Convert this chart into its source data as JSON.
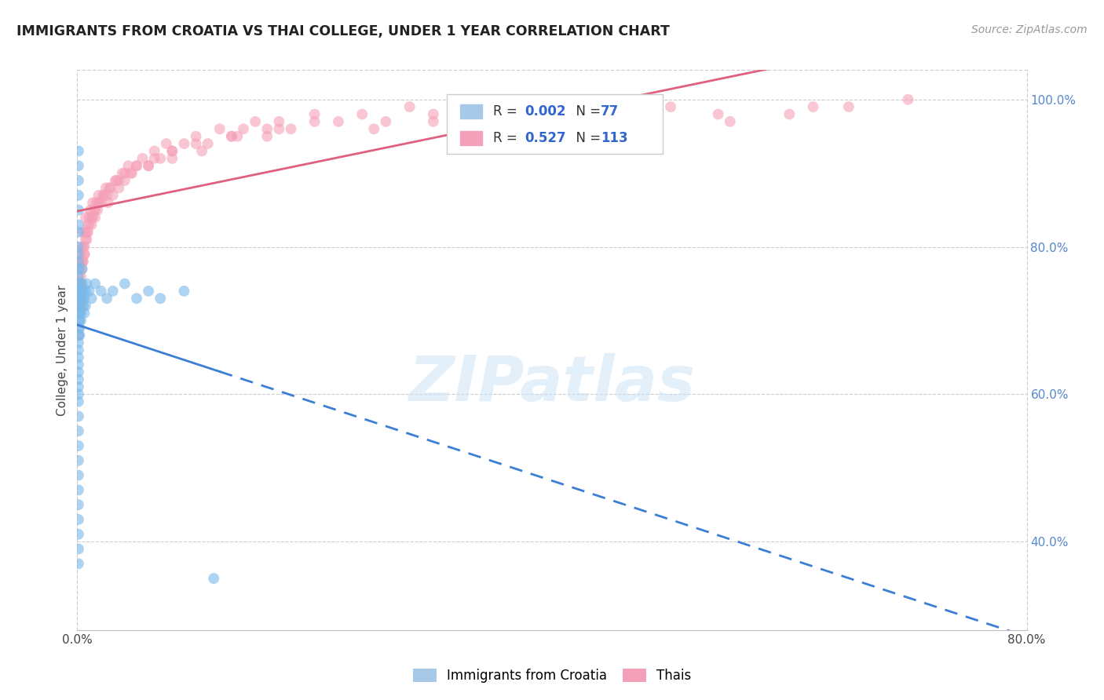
{
  "title": "IMMIGRANTS FROM CROATIA VS THAI COLLEGE, UNDER 1 YEAR CORRELATION CHART",
  "source": "Source: ZipAtlas.com",
  "ylabel": "College, Under 1 year",
  "xmin": 0.0,
  "xmax": 0.8,
  "ymin": 0.28,
  "ymax": 1.04,
  "right_yticks": [
    0.4,
    0.6,
    0.8,
    1.0
  ],
  "right_yticklabels": [
    "40.0%",
    "60.0%",
    "80.0%",
    "100.0%"
  ],
  "croatia_color": "#7ab8e8",
  "thai_color": "#f5a0b8",
  "croatia_line_color": "#3a7fd5",
  "thai_line_color": "#e06080",
  "watermark_text": "ZIPatlas",
  "grid_color": "#cccccc",
  "background_color": "#ffffff",
  "croatia_scatter_x": [
    0.001,
    0.001,
    0.001,
    0.001,
    0.001,
    0.001,
    0.001,
    0.001,
    0.001,
    0.001,
    0.001,
    0.001,
    0.001,
    0.001,
    0.001,
    0.001,
    0.001,
    0.001,
    0.001,
    0.001,
    0.001,
    0.001,
    0.001,
    0.001,
    0.001,
    0.001,
    0.001,
    0.001,
    0.001,
    0.001,
    0.001,
    0.001,
    0.001,
    0.001,
    0.001,
    0.001,
    0.001,
    0.001,
    0.001,
    0.001,
    0.002,
    0.002,
    0.002,
    0.002,
    0.002,
    0.002,
    0.002,
    0.002,
    0.003,
    0.003,
    0.003,
    0.003,
    0.003,
    0.004,
    0.004,
    0.004,
    0.005,
    0.005,
    0.006,
    0.006,
    0.007,
    0.007,
    0.008,
    0.01,
    0.012,
    0.015,
    0.02,
    0.025,
    0.03,
    0.04,
    0.05,
    0.06,
    0.07,
    0.09,
    0.115
  ],
  "croatia_scatter_y": [
    0.93,
    0.91,
    0.89,
    0.87,
    0.85,
    0.83,
    0.82,
    0.8,
    0.79,
    0.78,
    0.77,
    0.76,
    0.75,
    0.74,
    0.73,
    0.72,
    0.71,
    0.7,
    0.69,
    0.68,
    0.67,
    0.66,
    0.65,
    0.64,
    0.63,
    0.62,
    0.61,
    0.6,
    0.59,
    0.57,
    0.55,
    0.53,
    0.51,
    0.49,
    0.47,
    0.45,
    0.43,
    0.41,
    0.39,
    0.37,
    0.75,
    0.74,
    0.73,
    0.72,
    0.71,
    0.7,
    0.69,
    0.68,
    0.74,
    0.73,
    0.72,
    0.71,
    0.7,
    0.77,
    0.75,
    0.73,
    0.74,
    0.72,
    0.73,
    0.71,
    0.74,
    0.72,
    0.75,
    0.74,
    0.73,
    0.75,
    0.74,
    0.73,
    0.74,
    0.75,
    0.73,
    0.74,
    0.73,
    0.74,
    0.35
  ],
  "thai_scatter_x": [
    0.001,
    0.001,
    0.001,
    0.002,
    0.002,
    0.003,
    0.003,
    0.004,
    0.004,
    0.005,
    0.005,
    0.006,
    0.007,
    0.007,
    0.008,
    0.009,
    0.01,
    0.011,
    0.012,
    0.013,
    0.014,
    0.015,
    0.016,
    0.017,
    0.018,
    0.02,
    0.022,
    0.024,
    0.026,
    0.028,
    0.03,
    0.032,
    0.035,
    0.038,
    0.04,
    0.043,
    0.046,
    0.05,
    0.055,
    0.06,
    0.065,
    0.07,
    0.075,
    0.08,
    0.09,
    0.1,
    0.11,
    0.12,
    0.13,
    0.14,
    0.15,
    0.16,
    0.17,
    0.18,
    0.2,
    0.22,
    0.24,
    0.26,
    0.28,
    0.3,
    0.35,
    0.4,
    0.45,
    0.5,
    0.55,
    0.6,
    0.65,
    0.7,
    0.001,
    0.002,
    0.003,
    0.004,
    0.005,
    0.006,
    0.007,
    0.008,
    0.01,
    0.012,
    0.015,
    0.018,
    0.022,
    0.027,
    0.033,
    0.04,
    0.05,
    0.065,
    0.08,
    0.1,
    0.13,
    0.16,
    0.2,
    0.25,
    0.3,
    0.38,
    0.46,
    0.54,
    0.62,
    0.002,
    0.004,
    0.006,
    0.009,
    0.013,
    0.018,
    0.025,
    0.035,
    0.045,
    0.06,
    0.08,
    0.105,
    0.135,
    0.17
  ],
  "thai_scatter_y": [
    0.68,
    0.72,
    0.76,
    0.74,
    0.78,
    0.75,
    0.79,
    0.77,
    0.8,
    0.78,
    0.82,
    0.79,
    0.81,
    0.84,
    0.82,
    0.83,
    0.84,
    0.85,
    0.83,
    0.86,
    0.85,
    0.84,
    0.86,
    0.85,
    0.87,
    0.86,
    0.87,
    0.88,
    0.86,
    0.88,
    0.87,
    0.89,
    0.88,
    0.9,
    0.89,
    0.91,
    0.9,
    0.91,
    0.92,
    0.91,
    0.93,
    0.92,
    0.94,
    0.93,
    0.94,
    0.95,
    0.94,
    0.96,
    0.95,
    0.96,
    0.97,
    0.95,
    0.97,
    0.96,
    0.98,
    0.97,
    0.98,
    0.97,
    0.99,
    0.98,
    0.99,
    0.97,
    0.98,
    0.99,
    0.97,
    0.98,
    0.99,
    1.0,
    0.75,
    0.77,
    0.76,
    0.78,
    0.8,
    0.79,
    0.82,
    0.81,
    0.83,
    0.84,
    0.85,
    0.86,
    0.87,
    0.88,
    0.89,
    0.9,
    0.91,
    0.92,
    0.93,
    0.94,
    0.95,
    0.96,
    0.97,
    0.96,
    0.97,
    0.98,
    0.97,
    0.98,
    0.99,
    0.73,
    0.78,
    0.8,
    0.82,
    0.84,
    0.86,
    0.87,
    0.89,
    0.9,
    0.91,
    0.92,
    0.93,
    0.95,
    0.96
  ]
}
